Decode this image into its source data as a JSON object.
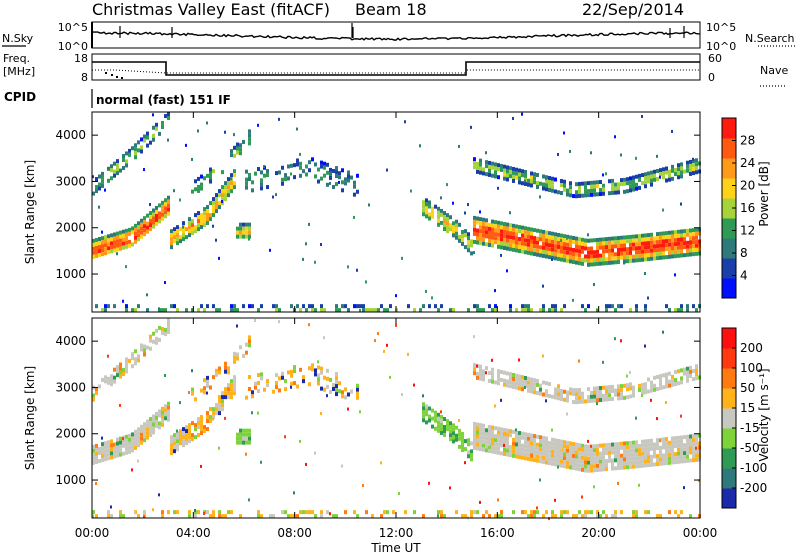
{
  "header": {
    "title": "Christmas Valley East (fitACF)",
    "beam": "Beam 18",
    "date": "22/Sep/2014"
  },
  "status_panels": {
    "sky_label": "N.Sky",
    "search_label": "N.Search",
    "noise_ticks_left": [
      "10^5",
      "10^0"
    ],
    "noise_ticks_right": [
      "10^5",
      "10^0"
    ],
    "freq_label": "Freq.",
    "freq_unit": "[MHz]",
    "freq_ticks": [
      "18",
      "8"
    ],
    "nave_label": "Nave",
    "nave_ticks": [
      "60",
      "0"
    ],
    "cpid_label": "CPID",
    "cpid_value": "normal (fast) 151 IF"
  },
  "chart_data": [
    {
      "type": "heatmap",
      "name": "power",
      "ylabel": "Slant Range [km]",
      "y_ticks": [
        "4000",
        "3000",
        "2000",
        "1000"
      ],
      "y_range": [
        180,
        4500
      ],
      "colorbar_label": "Power [dB]",
      "colorbar_ticks": [
        "28",
        "24",
        "20",
        "16",
        "12",
        "8",
        "4"
      ],
      "colorbar_colors": [
        "#0010ff",
        "#1a3fa8",
        "#2e7a7a",
        "#2f9a55",
        "#a6d33a",
        "#ffd21a",
        "#ff9a1a",
        "#ff5a10",
        "#ff1a10"
      ]
    },
    {
      "type": "heatmap",
      "name": "velocity",
      "ylabel": "Slant Range [km]",
      "xlabel": "Time UT",
      "y_ticks": [
        "4000",
        "3000",
        "2000",
        "1000"
      ],
      "y_range": [
        180,
        4500
      ],
      "x_ticks": [
        "00:00",
        "04:00",
        "08:00",
        "12:00",
        "16:00",
        "20:00",
        "00:00"
      ],
      "colorbar_label": "Velocity [m s⁻¹]",
      "colorbar_ticks": [
        "200",
        "100",
        "50",
        "15",
        "-15",
        "-50",
        "-100",
        "-200"
      ],
      "colorbar_colors": [
        "#1a2aaa",
        "#2e7a7a",
        "#2f9a55",
        "#7fd33a",
        "#c8c8c0",
        "#ffb21a",
        "#ff7a10",
        "#ff3a10",
        "#ff1010"
      ]
    }
  ]
}
